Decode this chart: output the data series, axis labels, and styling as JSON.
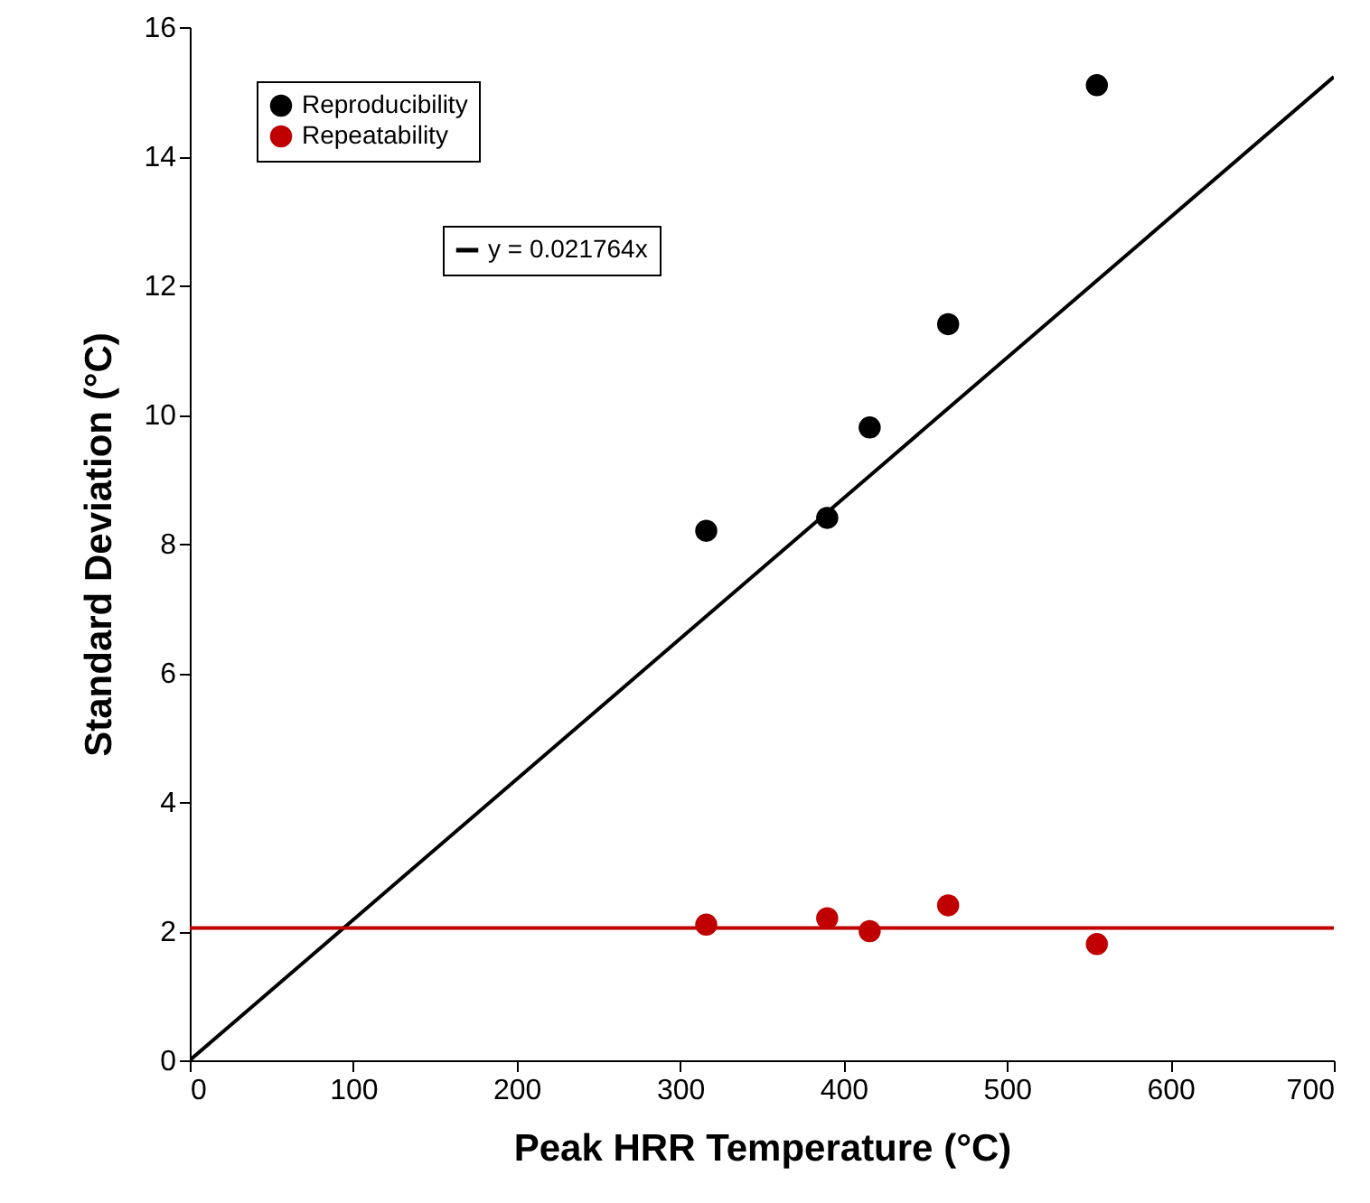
{
  "chart_data": {
    "type": "scatter",
    "xlabel": "Peak HRR Temperature (°C)",
    "ylabel": "Standard Deviation (°C)",
    "xlim": [
      0,
      700
    ],
    "ylim": [
      0,
      16
    ],
    "xticks": [
      0,
      100,
      200,
      300,
      400,
      500,
      600,
      700
    ],
    "yticks": [
      0,
      2,
      4,
      6,
      8,
      10,
      12,
      14,
      16
    ],
    "grid": false,
    "legend": "top left",
    "line_style": "solid",
    "series": [
      {
        "name": "Reproducibility",
        "color": "#000000",
        "marker": "circle",
        "x": [
          316,
          390,
          416,
          464,
          555
        ],
        "values": [
          8.2,
          8.4,
          9.8,
          11.4,
          15.1
        ]
      },
      {
        "name": "Repeatability",
        "color": "#c00000",
        "marker": "circle",
        "x": [
          316,
          390,
          416,
          464,
          555
        ],
        "values": [
          2.1,
          2.2,
          2.0,
          2.4,
          1.8
        ]
      },
      {
        "type": "line",
        "name": "y = 0.021764x",
        "color": "#000000",
        "x": [
          0,
          700
        ],
        "values": [
          0,
          15.23
        ]
      },
      {
        "type": "line",
        "color": "#c00000",
        "x": [
          0,
          700
        ],
        "values": [
          2.05,
          2.05
        ]
      }
    ]
  }
}
